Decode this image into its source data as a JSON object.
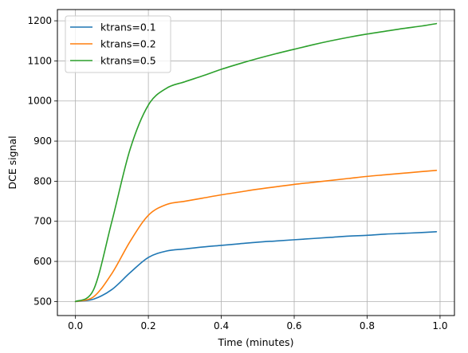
{
  "chart_data": {
    "type": "line",
    "title": "",
    "xlabel": "Time (minutes)",
    "ylabel": "DCE signal",
    "xlim": [
      -0.0495,
      1.0395
    ],
    "ylim": [
      465,
      1228
    ],
    "xticks": [
      0.0,
      0.2,
      0.4,
      0.6,
      0.8,
      1.0
    ],
    "xtick_labels": [
      "0.0",
      "0.2",
      "0.4",
      "0.6",
      "0.8",
      "1.0"
    ],
    "yticks": [
      500,
      600,
      700,
      800,
      900,
      1000,
      1100,
      1200
    ],
    "ytick_labels": [
      "500",
      "600",
      "700",
      "800",
      "900",
      "1000",
      "1100",
      "1200"
    ],
    "grid": true,
    "legend_position": "top-left",
    "x": [
      0.0,
      0.05,
      0.1,
      0.15,
      0.2,
      0.25,
      0.3,
      0.35,
      0.4,
      0.45,
      0.5,
      0.55,
      0.6,
      0.65,
      0.7,
      0.75,
      0.8,
      0.85,
      0.9,
      0.95,
      0.99
    ],
    "series": [
      {
        "name": "ktrans=0.1",
        "color": "#1f77b4",
        "values": [
          500,
          506,
          530,
          572,
          610,
          626,
          631,
          636,
          640,
          644,
          648,
          651,
          654,
          657,
          660,
          663,
          665,
          668,
          670,
          672,
          674
        ]
      },
      {
        "name": "ktrans=0.2",
        "color": "#ff7f0e",
        "values": [
          500,
          512,
          570,
          650,
          715,
          742,
          750,
          758,
          766,
          773,
          780,
          786,
          792,
          797,
          802,
          807,
          812,
          816,
          820,
          824,
          827
        ]
      },
      {
        "name": "ktrans=0.5",
        "color": "#2ca02c",
        "values": [
          500,
          530,
          700,
          880,
          990,
          1032,
          1048,
          1063,
          1079,
          1093,
          1106,
          1118,
          1129,
          1140,
          1150,
          1159,
          1167,
          1174,
          1181,
          1187,
          1193
        ]
      }
    ]
  }
}
